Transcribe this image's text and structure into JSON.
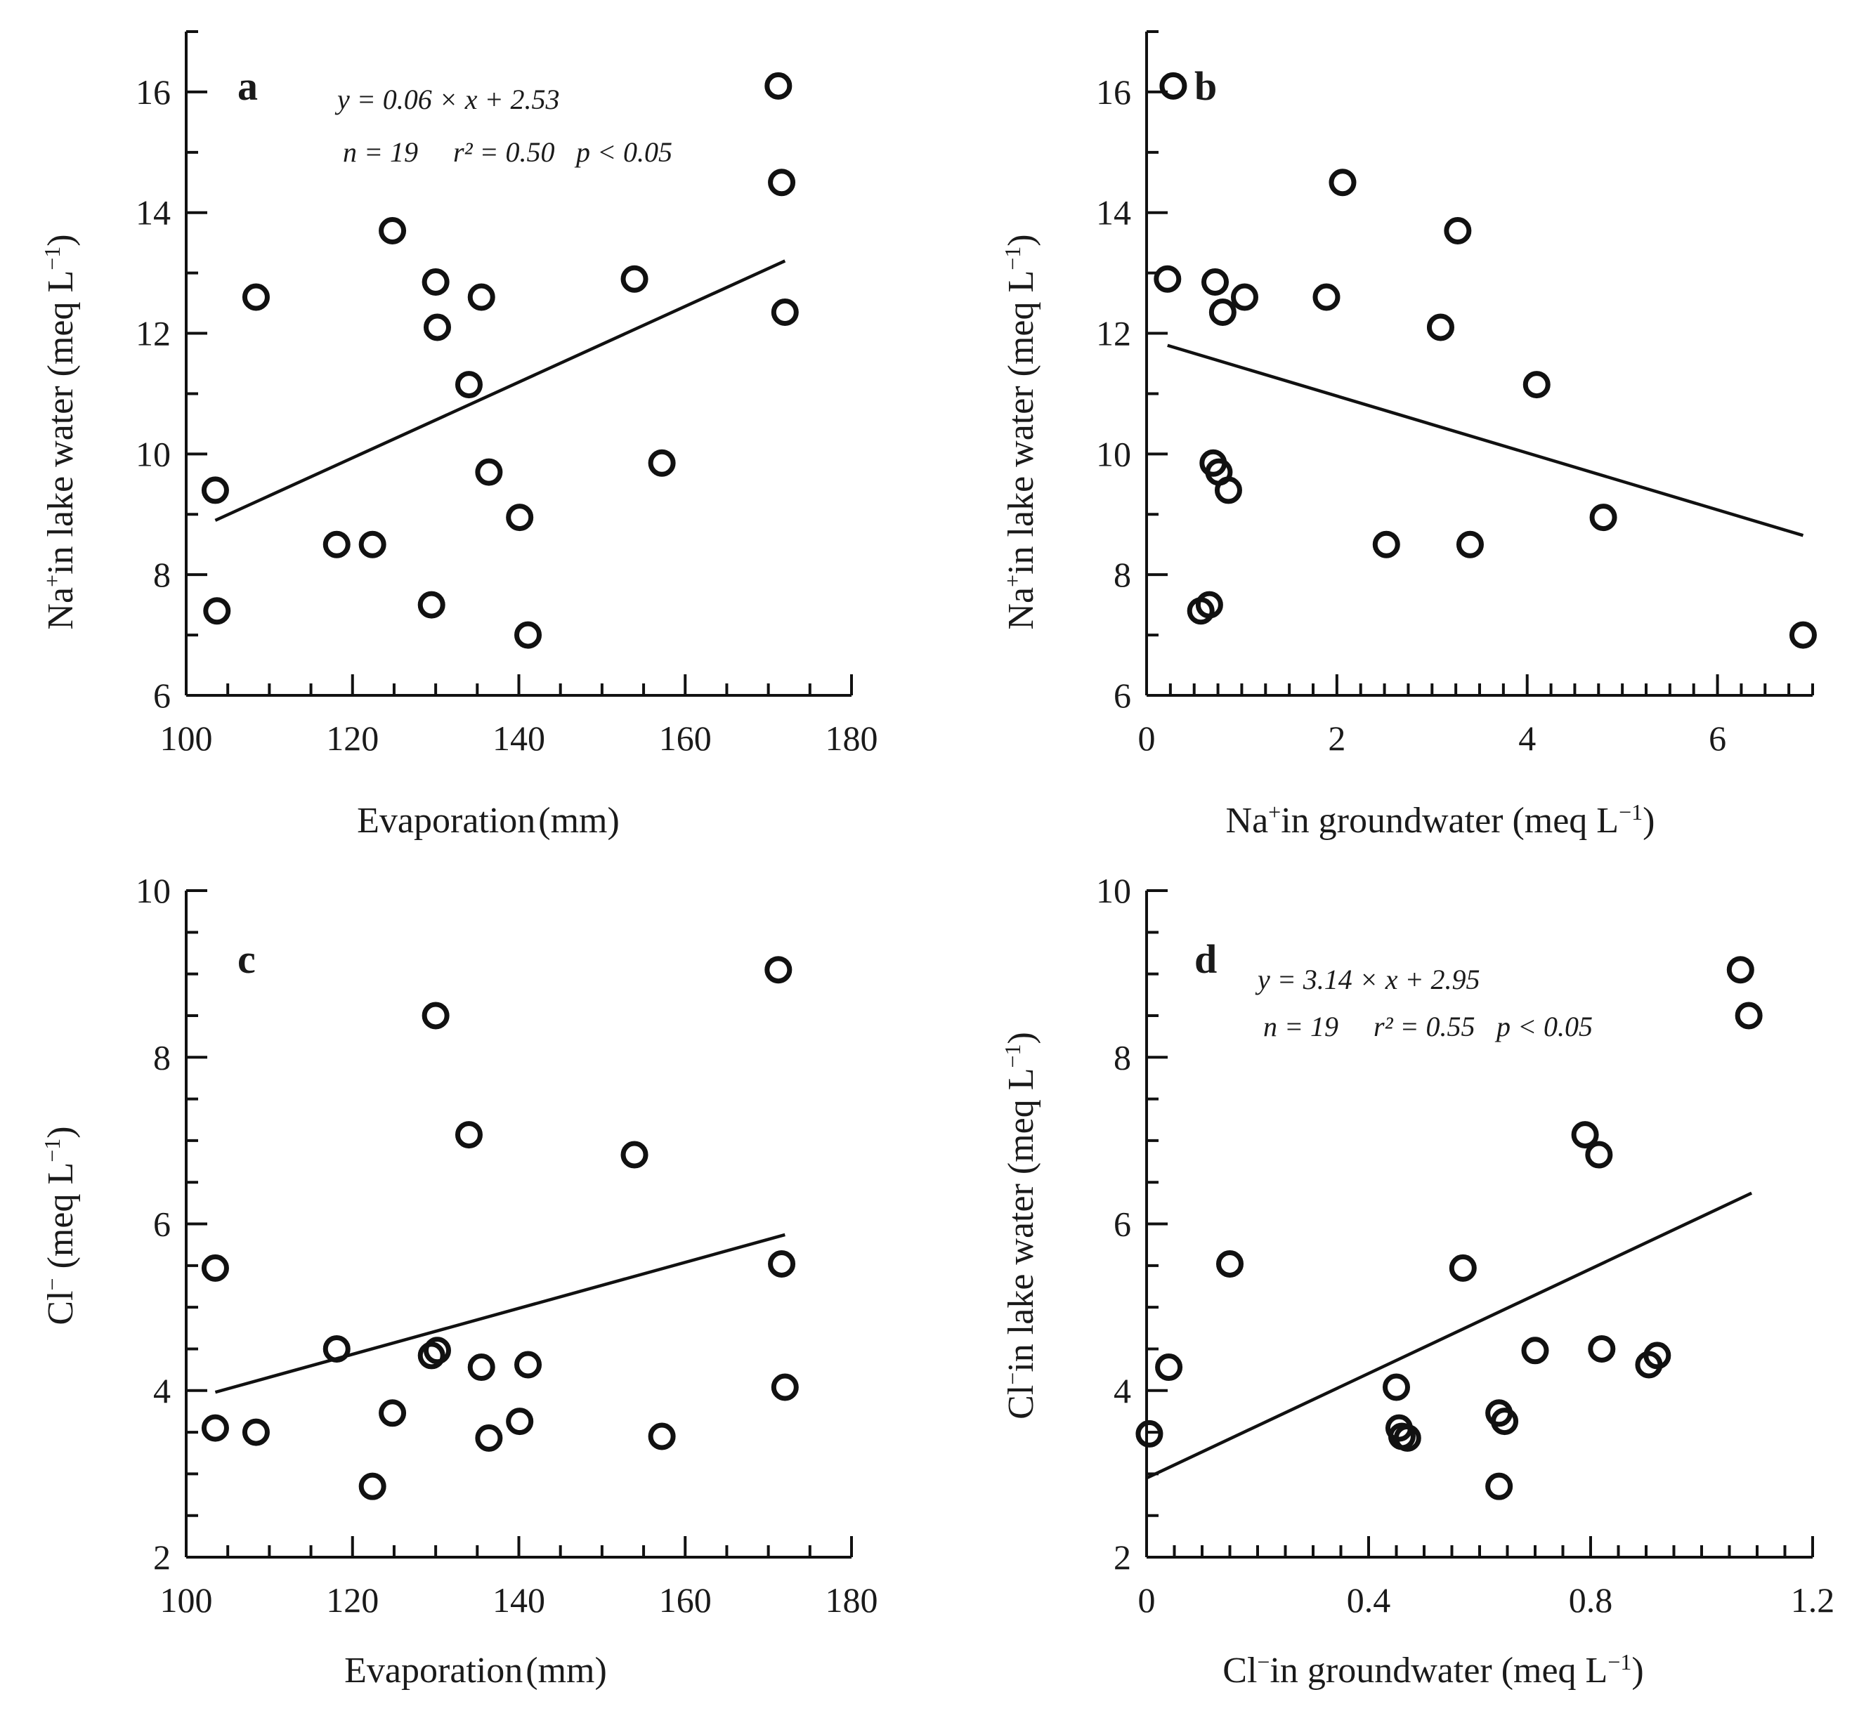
{
  "chart_data": [
    {
      "id": "a",
      "type": "scatter",
      "panel_label": "a",
      "xlabel": "Evaporation (mm)",
      "ylabel": "Na+ in lake water (meq L−1)",
      "xlim": [
        100,
        180
      ],
      "ylim": [
        6,
        17
      ],
      "xticks": [
        100,
        120,
        140,
        160,
        180
      ],
      "yticks": [
        6,
        8,
        10,
        12,
        14,
        16
      ],
      "x_minor_step": 5,
      "y_minor_step": 1,
      "points": [
        {
          "x": 103.5,
          "y": 9.4
        },
        {
          "x": 103.7,
          "y": 7.4
        },
        {
          "x": 108.4,
          "y": 12.6
        },
        {
          "x": 118.1,
          "y": 8.5
        },
        {
          "x": 122.4,
          "y": 8.5
        },
        {
          "x": 124.8,
          "y": 13.7
        },
        {
          "x": 129.5,
          "y": 7.5
        },
        {
          "x": 130.0,
          "y": 12.85
        },
        {
          "x": 130.2,
          "y": 12.1
        },
        {
          "x": 134.0,
          "y": 11.15
        },
        {
          "x": 135.5,
          "y": 12.6
        },
        {
          "x": 136.4,
          "y": 9.7
        },
        {
          "x": 140.1,
          "y": 8.95
        },
        {
          "x": 141.1,
          "y": 7.0
        },
        {
          "x": 153.9,
          "y": 12.9
        },
        {
          "x": 157.2,
          "y": 9.85
        },
        {
          "x": 171.2,
          "y": 16.1
        },
        {
          "x": 171.6,
          "y": 14.5
        },
        {
          "x": 172.0,
          "y": 12.35
        }
      ],
      "fit_line": {
        "x": [
          103.5,
          172.0
        ],
        "y": [
          8.9,
          13.2
        ]
      },
      "annotations": {
        "equation": "y = 0.06 × x + 2.53",
        "n": "n = 19",
        "r2": "r² = 0.50",
        "p": "p < 0.05"
      }
    },
    {
      "id": "b",
      "type": "scatter",
      "panel_label": "b",
      "xlabel": "Na+ in groundwater (meq L−1)",
      "ylabel": "Na+ in lake water (meq L−1)",
      "xlim": [
        0,
        7
      ],
      "ylim": [
        6,
        17
      ],
      "xticks": [
        0,
        2,
        4,
        6
      ],
      "yticks": [
        6,
        8,
        10,
        12,
        14,
        16
      ],
      "x_minor_step": 0.25,
      "y_minor_step": 1,
      "points": [
        {
          "x": 0.28,
          "y": 16.1
        },
        {
          "x": 0.22,
          "y": 12.9
        },
        {
          "x": 0.72,
          "y": 12.85
        },
        {
          "x": 0.8,
          "y": 12.35
        },
        {
          "x": 1.03,
          "y": 12.6
        },
        {
          "x": 1.89,
          "y": 12.6
        },
        {
          "x": 2.06,
          "y": 14.5
        },
        {
          "x": 3.09,
          "y": 12.1
        },
        {
          "x": 3.27,
          "y": 13.7
        },
        {
          "x": 4.1,
          "y": 11.15
        },
        {
          "x": 0.7,
          "y": 9.85
        },
        {
          "x": 0.76,
          "y": 9.7
        },
        {
          "x": 0.86,
          "y": 9.4
        },
        {
          "x": 2.52,
          "y": 8.5
        },
        {
          "x": 3.4,
          "y": 8.5
        },
        {
          "x": 4.8,
          "y": 8.95
        },
        {
          "x": 0.57,
          "y": 7.4
        },
        {
          "x": 0.66,
          "y": 7.5
        },
        {
          "x": 6.9,
          "y": 7.0
        }
      ],
      "fit_line": {
        "x": [
          0.22,
          6.9
        ],
        "y": [
          11.8,
          8.65
        ]
      }
    },
    {
      "id": "c",
      "type": "scatter",
      "panel_label": "c",
      "xlabel": "Evaporation (mm)",
      "ylabel": "Cl− (meq L−1)",
      "xlim": [
        100,
        180
      ],
      "ylim": [
        2,
        10
      ],
      "xticks": [
        100,
        120,
        140,
        160,
        180
      ],
      "yticks": [
        2,
        4,
        6,
        8,
        10
      ],
      "x_minor_step": 5,
      "y_minor_step": 0.5,
      "points": [
        {
          "x": 103.5,
          "y": 5.47
        },
        {
          "x": 103.5,
          "y": 3.55
        },
        {
          "x": 108.4,
          "y": 3.5
        },
        {
          "x": 118.1,
          "y": 4.5
        },
        {
          "x": 122.4,
          "y": 2.85
        },
        {
          "x": 124.8,
          "y": 3.73
        },
        {
          "x": 129.5,
          "y": 4.42
        },
        {
          "x": 130.2,
          "y": 4.48
        },
        {
          "x": 130.0,
          "y": 8.5
        },
        {
          "x": 134.0,
          "y": 7.07
        },
        {
          "x": 135.5,
          "y": 4.28
        },
        {
          "x": 136.4,
          "y": 3.43
        },
        {
          "x": 140.1,
          "y": 3.63
        },
        {
          "x": 141.1,
          "y": 4.31
        },
        {
          "x": 153.9,
          "y": 6.83
        },
        {
          "x": 157.2,
          "y": 3.45
        },
        {
          "x": 171.2,
          "y": 9.05
        },
        {
          "x": 171.6,
          "y": 5.52
        },
        {
          "x": 172.0,
          "y": 4.04
        }
      ],
      "fit_line": {
        "x": [
          103.5,
          172.0
        ],
        "y": [
          3.98,
          5.87
        ]
      }
    },
    {
      "id": "d",
      "type": "scatter",
      "panel_label": "d",
      "xlabel": "Cl− in groundwater (meq L−1)",
      "ylabel": "Cl− in lake water (meq L−1)",
      "xlim": [
        0,
        1.2
      ],
      "ylim": [
        2,
        10
      ],
      "xticks": [
        0,
        0.4,
        0.8,
        1.2
      ],
      "yticks": [
        2,
        4,
        6,
        8,
        10
      ],
      "x_minor_step": 0.05,
      "y_minor_step": 0.5,
      "points": [
        {
          "x": 0.005,
          "y": 3.48
        },
        {
          "x": 0.04,
          "y": 4.28
        },
        {
          "x": 0.15,
          "y": 5.52
        },
        {
          "x": 0.45,
          "y": 4.04
        },
        {
          "x": 0.455,
          "y": 3.55
        },
        {
          "x": 0.46,
          "y": 3.45
        },
        {
          "x": 0.47,
          "y": 3.43
        },
        {
          "x": 0.57,
          "y": 5.47
        },
        {
          "x": 0.635,
          "y": 3.73
        },
        {
          "x": 0.645,
          "y": 3.63
        },
        {
          "x": 0.635,
          "y": 2.85
        },
        {
          "x": 0.7,
          "y": 4.48
        },
        {
          "x": 0.79,
          "y": 7.07
        },
        {
          "x": 0.815,
          "y": 6.83
        },
        {
          "x": 0.82,
          "y": 4.5
        },
        {
          "x": 0.905,
          "y": 4.31
        },
        {
          "x": 0.92,
          "y": 4.42
        },
        {
          "x": 1.07,
          "y": 9.05
        },
        {
          "x": 1.085,
          "y": 8.5
        }
      ],
      "fit_line": {
        "x": [
          0.0,
          1.09
        ],
        "y": [
          2.95,
          6.37
        ]
      },
      "annotations": {
        "equation": "y = 3.14 × x + 2.95",
        "n": "n = 19",
        "r2": "r² = 0.55",
        "p": "p < 0.05"
      }
    }
  ]
}
